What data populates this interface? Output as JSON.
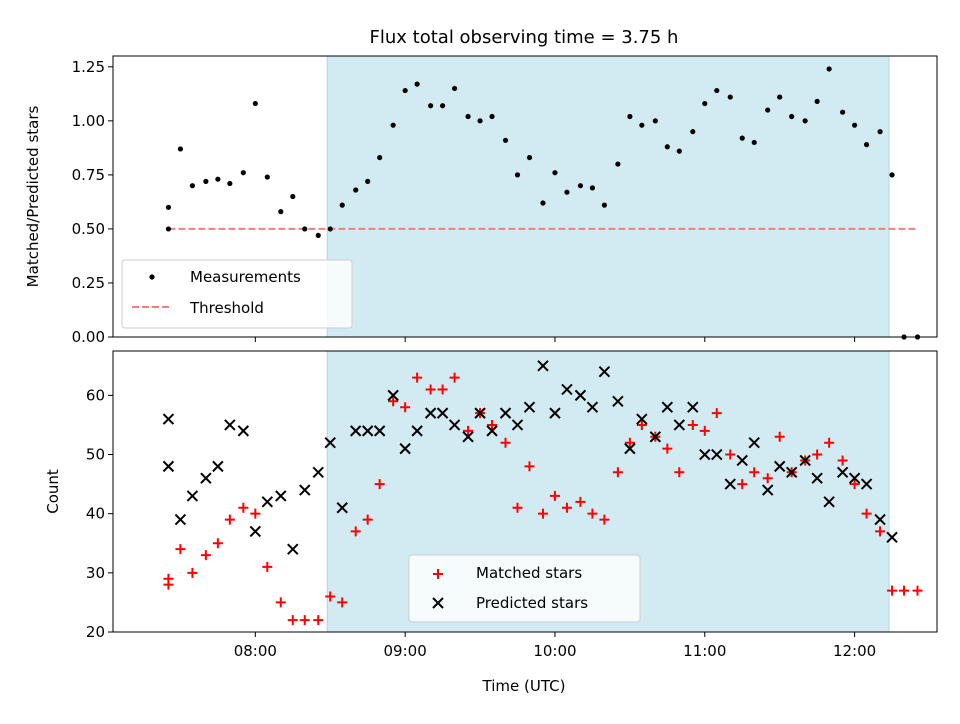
{
  "chart_data": {
    "type": "scatter",
    "title": "Flux total observing time = 3.75 h",
    "xlabel": "Time (UTC)",
    "x_tick_labels": [
      "08:00",
      "09:00",
      "10:00",
      "11:00",
      "12:00"
    ],
    "x_tick_hours": [
      8,
      9,
      10,
      11,
      12
    ],
    "xlim_hours": [
      7.05,
      12.55
    ],
    "shaded_interval_hours": [
      8.48,
      12.23
    ],
    "shade_color": "#add8e6",
    "panels": [
      {
        "id": "ratio",
        "ylabel": "Matched/Predicted stars",
        "ylim": [
          0,
          1.3
        ],
        "y_ticks": [
          "0.00",
          "0.25",
          "0.50",
          "0.75",
          "1.00",
          "1.25"
        ],
        "legend": {
          "position": "lower left",
          "entries": [
            "Measurements",
            "Threshold"
          ]
        },
        "threshold": {
          "name": "Threshold",
          "value": 0.5,
          "x_start": 7.42,
          "x_end": 12.42,
          "color": "#f08080"
        },
        "series": [
          {
            "name": "Measurements",
            "color": "#000000",
            "marker": "dot",
            "x": [
              7.42,
              7.42,
              7.5,
              7.58,
              7.67,
              7.75,
              7.83,
              7.92,
              8.0,
              8.08,
              8.17,
              8.25,
              8.33,
              8.42,
              8.5,
              8.58,
              8.67,
              8.75,
              8.83,
              8.92,
              9.0,
              9.08,
              9.17,
              9.25,
              9.33,
              9.42,
              9.5,
              9.58,
              9.67,
              9.75,
              9.83,
              9.92,
              10.0,
              10.08,
              10.17,
              10.25,
              10.33,
              10.42,
              10.5,
              10.58,
              10.67,
              10.75,
              10.83,
              10.92,
              11.0,
              11.08,
              11.17,
              11.25,
              11.33,
              11.42,
              11.5,
              11.58,
              11.67,
              11.75,
              11.83,
              11.92,
              12.0,
              12.08,
              12.17,
              12.25,
              12.33,
              12.42
            ],
            "y": [
              0.6,
              0.5,
              0.87,
              0.7,
              0.72,
              0.73,
              0.71,
              0.76,
              1.08,
              0.74,
              0.58,
              0.65,
              0.5,
              0.47,
              0.5,
              0.61,
              0.68,
              0.72,
              0.83,
              0.98,
              1.14,
              1.17,
              1.07,
              1.07,
              1.15,
              1.02,
              1.0,
              1.02,
              0.91,
              0.75,
              0.83,
              0.62,
              0.76,
              0.67,
              0.7,
              0.69,
              0.61,
              0.8,
              1.02,
              0.98,
              1.0,
              0.88,
              0.86,
              0.95,
              1.08,
              1.14,
              1.11,
              0.92,
              0.9,
              1.05,
              1.11,
              1.02,
              1.0,
              1.09,
              1.24,
              1.04,
              0.98,
              0.89,
              0.95,
              0.75,
              0.0,
              0.0
            ]
          }
        ]
      },
      {
        "id": "count",
        "ylabel": "Count",
        "ylim": [
          20,
          67.5
        ],
        "y_ticks": [
          "20",
          "30",
          "40",
          "50",
          "60"
        ],
        "legend": {
          "position": "lower center",
          "entries": [
            "Matched stars",
            "Predicted stars"
          ]
        },
        "series": [
          {
            "name": "Matched stars",
            "color": "#ff0000",
            "marker": "plus",
            "x": [
              7.42,
              7.42,
              7.5,
              7.58,
              7.67,
              7.75,
              7.83,
              7.92,
              8.0,
              8.08,
              8.17,
              8.25,
              8.33,
              8.42,
              8.5,
              8.58,
              8.67,
              8.75,
              8.83,
              8.92,
              9.0,
              9.08,
              9.17,
              9.25,
              9.33,
              9.42,
              9.5,
              9.58,
              9.67,
              9.75,
              9.83,
              9.92,
              10.0,
              10.08,
              10.17,
              10.25,
              10.33,
              10.42,
              10.5,
              10.58,
              10.67,
              10.75,
              10.83,
              10.92,
              11.0,
              11.08,
              11.17,
              11.25,
              11.33,
              11.42,
              11.5,
              11.58,
              11.67,
              11.75,
              11.83,
              11.92,
              12.0,
              12.08,
              12.17,
              12.25,
              12.33,
              12.42
            ],
            "y": [
              29,
              28,
              34,
              30,
              33,
              35,
              39,
              41,
              40,
              31,
              25,
              22,
              22,
              22,
              26,
              25,
              37,
              39,
              45,
              59,
              58,
              63,
              61,
              61,
              63,
              54,
              57,
              55,
              52,
              41,
              48,
              40,
              43,
              41,
              42,
              40,
              39,
              47,
              52,
              55,
              53,
              51,
              47,
              55,
              54,
              57,
              50,
              45,
              47,
              46,
              53,
              47,
              49,
              50,
              52,
              49,
              45,
              40,
              37,
              27,
              27,
              27
            ]
          },
          {
            "name": "Predicted stars",
            "color": "#000000",
            "marker": "x",
            "x": [
              7.42,
              7.42,
              7.5,
              7.58,
              7.67,
              7.75,
              7.83,
              7.92,
              8.0,
              8.08,
              8.17,
              8.25,
              8.33,
              8.42,
              8.5,
              8.58,
              8.67,
              8.75,
              8.83,
              8.92,
              9.0,
              9.08,
              9.17,
              9.25,
              9.33,
              9.42,
              9.5,
              9.58,
              9.67,
              9.75,
              9.83,
              9.92,
              10.0,
              10.08,
              10.17,
              10.25,
              10.33,
              10.42,
              10.5,
              10.58,
              10.67,
              10.75,
              10.83,
              10.92,
              11.0,
              11.08,
              11.17,
              11.25,
              11.33,
              11.42,
              11.5,
              11.58,
              11.67,
              11.75,
              11.83,
              11.92,
              12.0,
              12.08,
              12.17,
              12.25
            ],
            "y": [
              56,
              48,
              39,
              43,
              46,
              48,
              55,
              54,
              37,
              42,
              43,
              34,
              44,
              47,
              52,
              41,
              54,
              54,
              54,
              60,
              51,
              54,
              57,
              57,
              55,
              53,
              57,
              54,
              57,
              55,
              58,
              65,
              57,
              61,
              60,
              58,
              64,
              59,
              51,
              56,
              53,
              58,
              55,
              58,
              50,
              50,
              45,
              49,
              52,
              44,
              48,
              47,
              49,
              46,
              42,
              47,
              46,
              45,
              39,
              36
            ]
          }
        ]
      }
    ]
  }
}
